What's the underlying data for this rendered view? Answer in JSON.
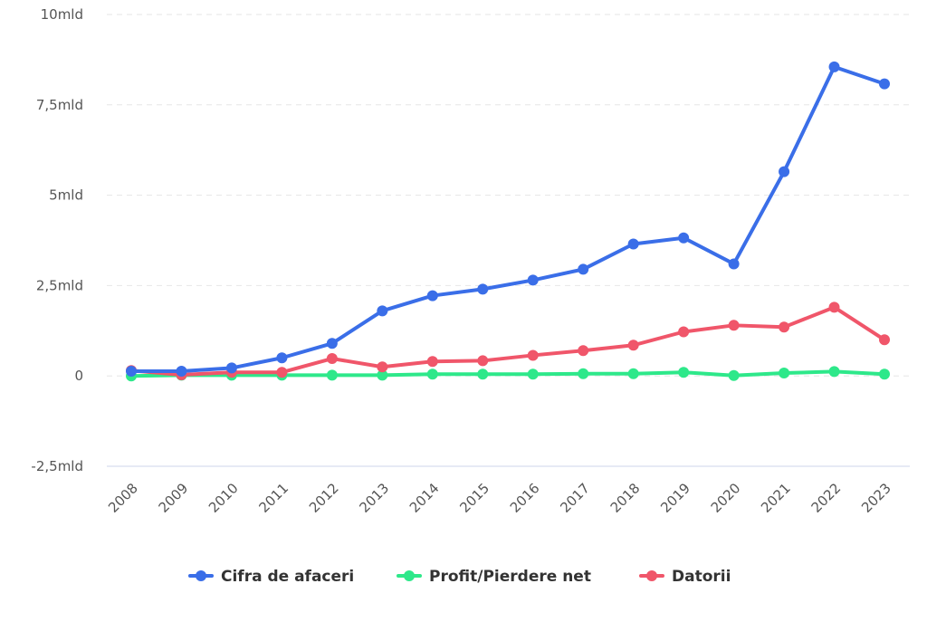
{
  "chart_data": {
    "type": "line",
    "title": "",
    "xlabel": "",
    "ylabel": "",
    "x": [
      "2008",
      "2009",
      "2010",
      "2011",
      "2012",
      "2013",
      "2014",
      "2015",
      "2016",
      "2017",
      "2018",
      "2019",
      "2020",
      "2021",
      "2022",
      "2023"
    ],
    "ylim": [
      -2.5,
      10
    ],
    "yticks": [
      {
        "value": 10,
        "label": "10mld"
      },
      {
        "value": 7.5,
        "label": "7,5mld"
      },
      {
        "value": 5,
        "label": "5mld"
      },
      {
        "value": 2.5,
        "label": "2,5mld"
      },
      {
        "value": 0,
        "label": "0"
      },
      {
        "value": -2.5,
        "label": "-2,5mld"
      }
    ],
    "grid": true,
    "legend_position": "bottom",
    "unit": "mld",
    "series": [
      {
        "name": "Cifra de afaceri",
        "color": "#3a6ee8",
        "values": [
          0.13,
          0.13,
          0.22,
          0.5,
          0.9,
          1.8,
          2.22,
          2.4,
          2.65,
          2.95,
          3.65,
          3.82,
          3.1,
          5.65,
          8.55,
          8.08
        ]
      },
      {
        "name": "Profit/Pierdere net",
        "color": "#2ee88a",
        "values": [
          0.0,
          0.02,
          0.02,
          0.02,
          0.02,
          0.02,
          0.05,
          0.05,
          0.05,
          0.06,
          0.06,
          0.1,
          0.01,
          0.08,
          0.12,
          0.05
        ]
      },
      {
        "name": "Datorii",
        "color": "#f0566a",
        "values": [
          0.15,
          0.03,
          0.1,
          0.1,
          0.48,
          0.25,
          0.4,
          0.42,
          0.57,
          0.7,
          0.85,
          1.22,
          1.4,
          1.35,
          1.9,
          1.0
        ]
      }
    ]
  }
}
